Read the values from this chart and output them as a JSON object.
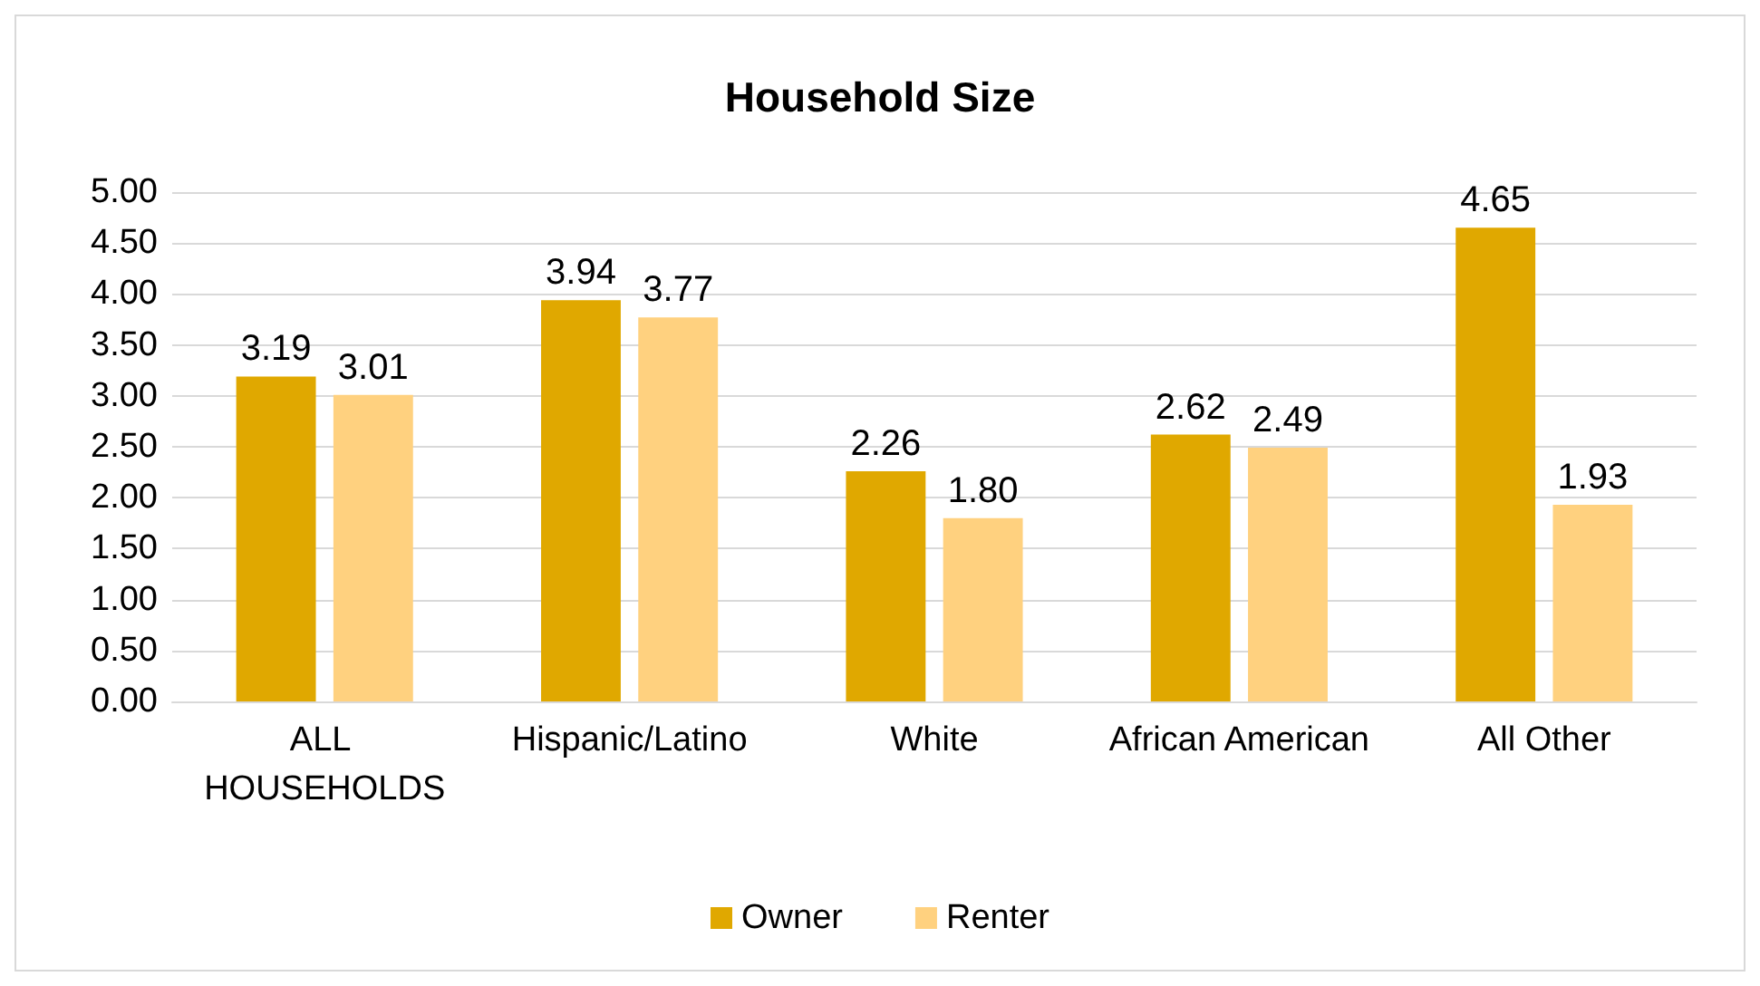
{
  "chart_data": {
    "type": "bar",
    "title": "Household Size",
    "categories": [
      "ALL HOUSEHOLDS",
      "Hispanic/Latino",
      "White",
      "African American",
      "All Other"
    ],
    "series": [
      {
        "name": "Owner",
        "color": "#e0a800",
        "values": [
          3.19,
          3.94,
          2.26,
          2.62,
          4.65
        ],
        "value_labels": [
          "3.19",
          "3.94",
          "2.26",
          "2.62",
          "4.65"
        ]
      },
      {
        "name": "Renter",
        "color": "#ffd17f",
        "values": [
          3.01,
          3.77,
          1.8,
          2.49,
          1.93
        ],
        "value_labels": [
          "3.01",
          "3.77",
          "1.80",
          "2.49",
          "1.93"
        ]
      }
    ],
    "ylim": [
      0,
      5
    ],
    "yticks": [
      {
        "value": 0,
        "label": "0.00"
      },
      {
        "value": 0.5,
        "label": "0.50"
      },
      {
        "value": 1,
        "label": "1.00"
      },
      {
        "value": 1.5,
        "label": "1.50"
      },
      {
        "value": 2,
        "label": "2.00"
      },
      {
        "value": 2.5,
        "label": "2.50"
      },
      {
        "value": 3,
        "label": "3.00"
      },
      {
        "value": 3.5,
        "label": "3.50"
      },
      {
        "value": 4,
        "label": "4.00"
      },
      {
        "value": 4.5,
        "label": "4.50"
      },
      {
        "value": 5,
        "label": "5.00"
      }
    ],
    "grid": "y",
    "legend": "bottom"
  }
}
